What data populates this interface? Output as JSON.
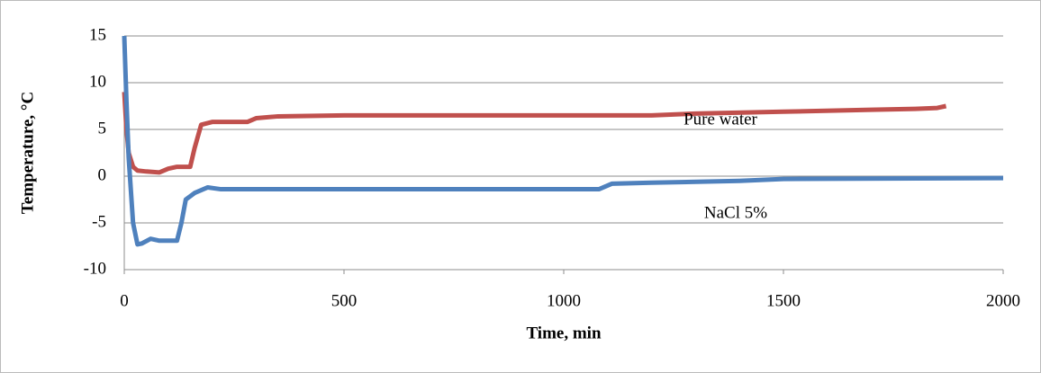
{
  "chart_data": {
    "type": "line",
    "xlabel": "Time, min",
    "ylabel": "Temperature, °C",
    "xlim": [
      0,
      2000
    ],
    "xticks": [
      0,
      500,
      1000,
      1500,
      2000
    ],
    "ylim": [
      -10,
      15
    ],
    "yticks": [
      -10,
      -5,
      0,
      5,
      10,
      15
    ],
    "grid": true,
    "series": [
      {
        "name": "Pure water",
        "color": "#c0504d",
        "x": [
          0,
          5,
          10,
          20,
          30,
          50,
          80,
          100,
          120,
          150,
          160,
          175,
          200,
          280,
          300,
          350,
          500,
          1000,
          1200,
          1300,
          1500,
          1700,
          1800,
          1850,
          1870
        ],
        "values": [
          9,
          5,
          2.5,
          1,
          0.6,
          0.5,
          0.4,
          0.8,
          1,
          1,
          3,
          5.5,
          5.8,
          5.8,
          6.2,
          6.4,
          6.5,
          6.5,
          6.5,
          6.7,
          6.9,
          7.1,
          7.2,
          7.3,
          7.5
        ]
      },
      {
        "name": "NaCl 5%",
        "color": "#4f81bd",
        "x": [
          0,
          5,
          10,
          20,
          30,
          40,
          60,
          80,
          120,
          130,
          140,
          160,
          190,
          220,
          500,
          1080,
          1110,
          1200,
          1400,
          1500,
          2000
        ],
        "values": [
          15,
          8,
          2,
          -5,
          -7.3,
          -7.2,
          -6.7,
          -6.9,
          -6.9,
          -5,
          -2.5,
          -1.8,
          -1.2,
          -1.4,
          -1.4,
          -1.4,
          -0.8,
          -0.7,
          -0.5,
          -0.3,
          -0.2
        ]
      }
    ]
  }
}
